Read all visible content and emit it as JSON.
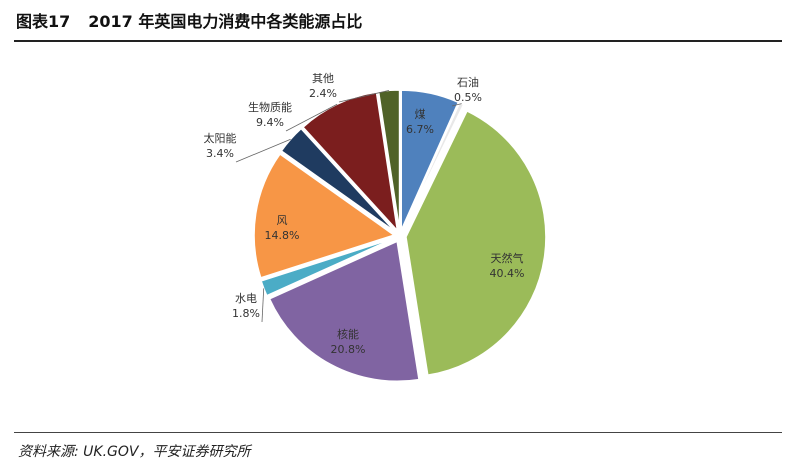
{
  "header": {
    "figure_label": "图表17",
    "title": "2017 年英国电力消费中各类能源占比"
  },
  "source": "资料来源: UK.GOV，平安证券研究所",
  "chart_data": {
    "type": "pie",
    "slices": [
      {
        "label": "煤",
        "value": 6.7,
        "value_label": "6.7%",
        "color": "#4f81bd"
      },
      {
        "label": "石油",
        "value": 0.5,
        "value_label": "0.5%",
        "color": "#e8e8e8"
      },
      {
        "label": "天然气",
        "value": 40.4,
        "value_label": "40.4%",
        "color": "#9bbb59"
      },
      {
        "label": "核能",
        "value": 20.8,
        "value_label": "20.8%",
        "color": "#8064a2"
      },
      {
        "label": "水电",
        "value": 1.8,
        "value_label": "1.8%",
        "color": "#4bacc6"
      },
      {
        "label": "风",
        "value": 14.8,
        "value_label": "14.8%",
        "color": "#f79646"
      },
      {
        "label": "太阳能",
        "value": 3.4,
        "value_label": "3.4%",
        "color": "#1f3b60"
      },
      {
        "label": "生物质能",
        "value": 9.4,
        "value_label": "9.4%",
        "color": "#7b1e1e"
      },
      {
        "label": "其他",
        "value": 2.4,
        "value_label": "2.4%",
        "color": "#4f6228"
      }
    ]
  }
}
